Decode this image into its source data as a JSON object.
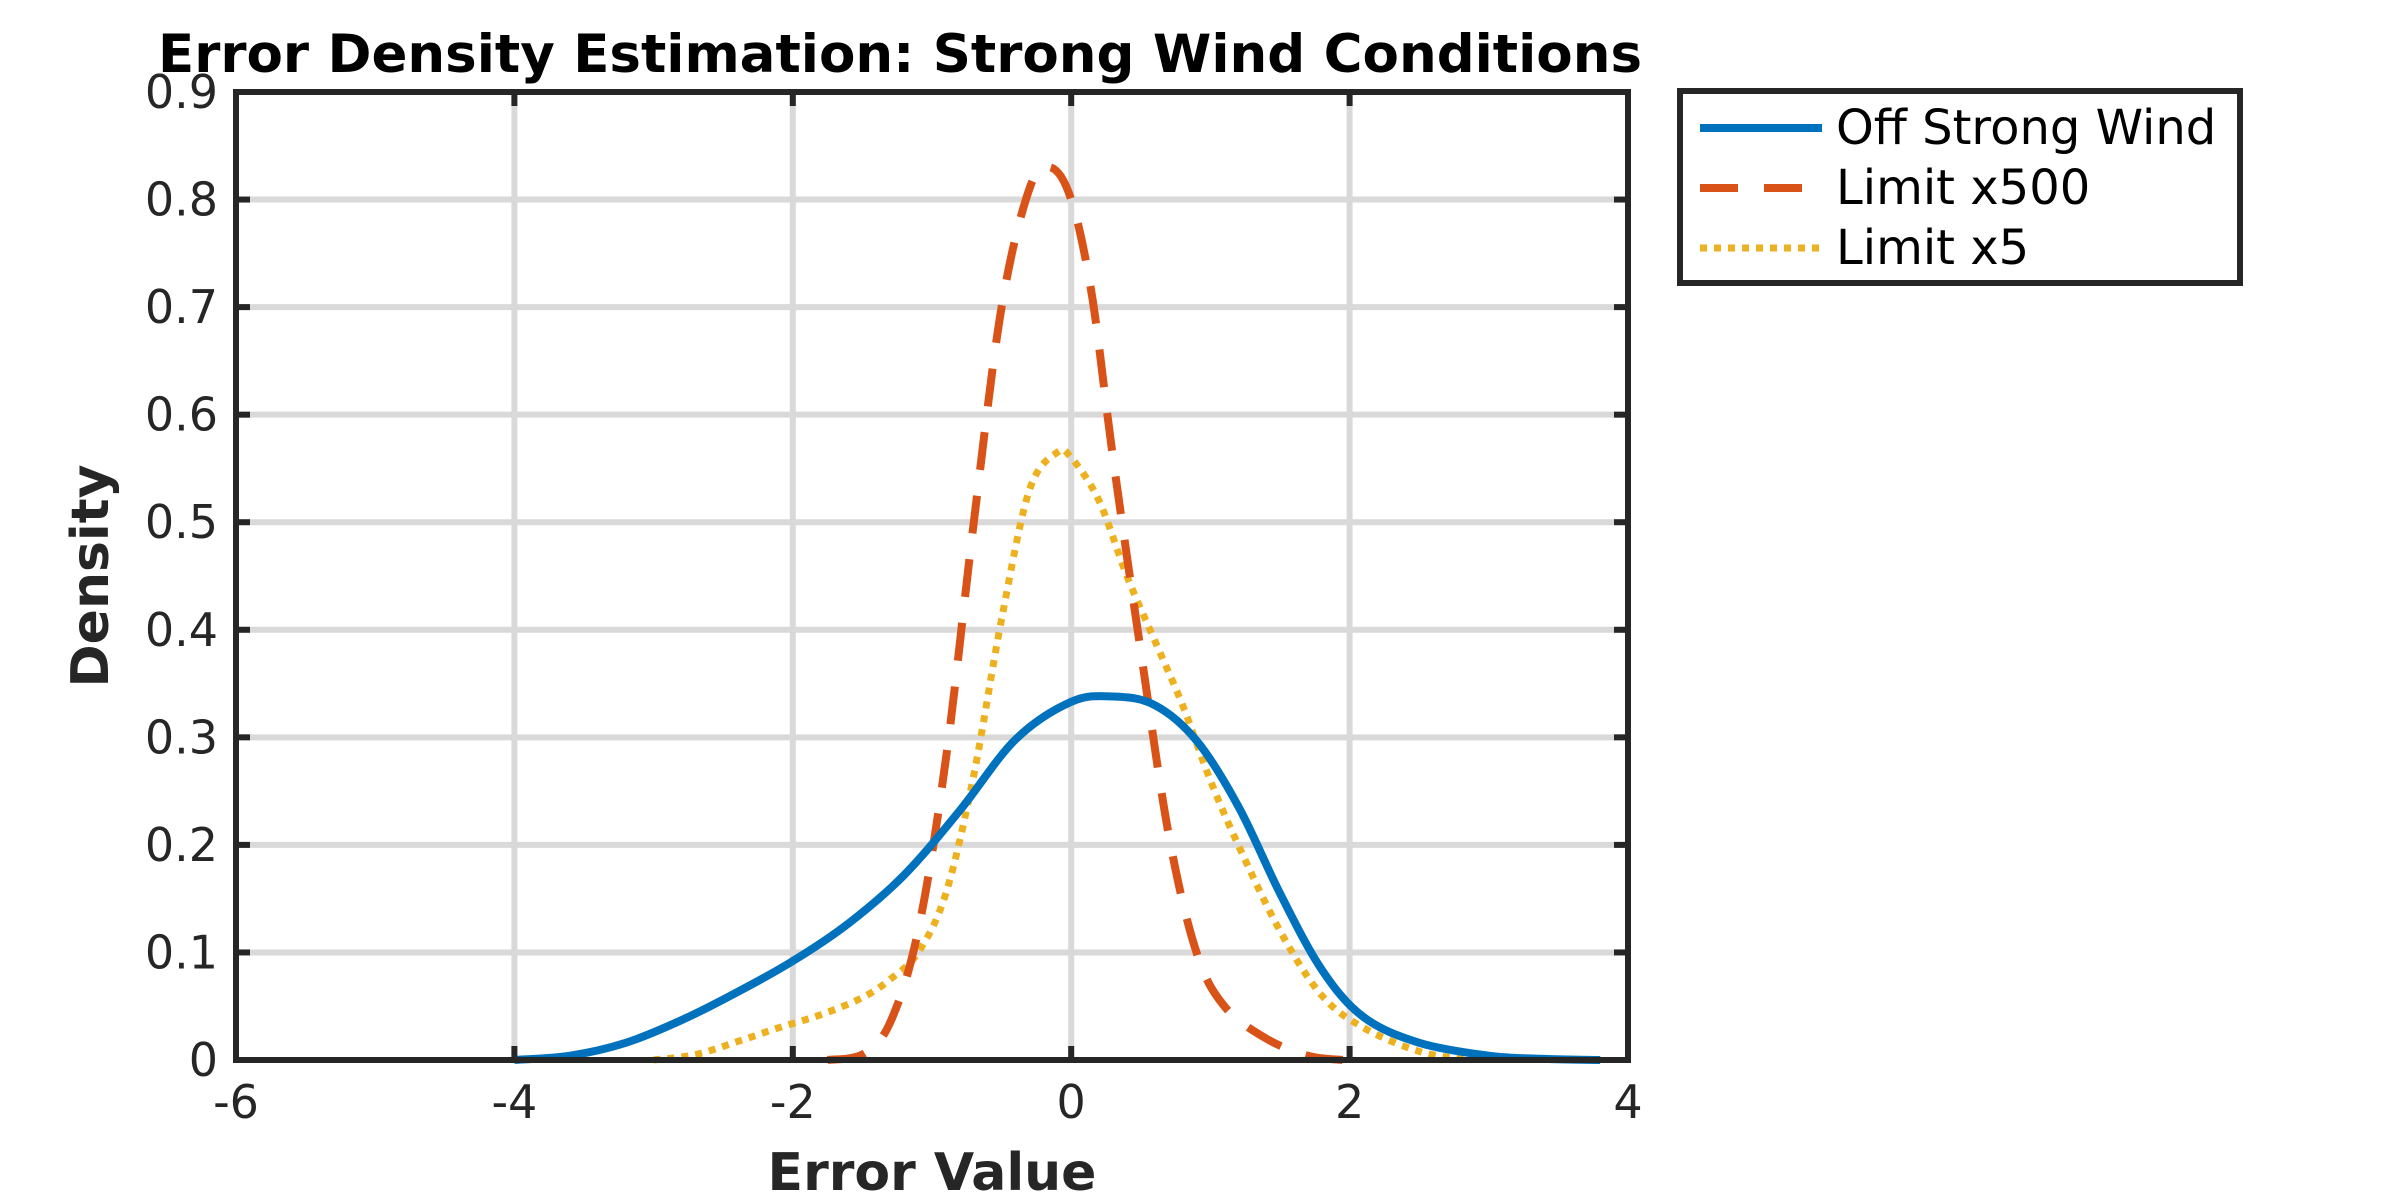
{
  "chart_data": {
    "type": "line",
    "title": "Error Density Estimation: Strong Wind Conditions",
    "xlabel": "Error Value",
    "ylabel": "Density",
    "xlim": [
      -6,
      4
    ],
    "ylim": [
      0,
      0.9
    ],
    "x_ticks": [
      -6,
      -4,
      -2,
      0,
      2,
      4
    ],
    "x_tick_labels": [
      "-6",
      "-4",
      "-2",
      "0",
      "2",
      "4"
    ],
    "y_ticks": [
      0,
      0.1,
      0.2,
      0.3,
      0.4,
      0.5,
      0.6,
      0.7,
      0.8,
      0.9
    ],
    "y_tick_labels": [
      "0",
      "0.1",
      "0.2",
      "0.3",
      "0.4",
      "0.5",
      "0.6",
      "0.7",
      "0.8",
      "0.9"
    ],
    "grid": true,
    "legend_position": "outside-top-right",
    "series": [
      {
        "name": "Off Strong Wind",
        "color": "#0072BD",
        "dash": "solid",
        "x": [
          -4.0,
          -3.6,
          -3.2,
          -2.8,
          -2.4,
          -2.0,
          -1.6,
          -1.2,
          -0.8,
          -0.4,
          0.0,
          0.3,
          0.6,
          0.9,
          1.2,
          1.5,
          1.8,
          2.1,
          2.5,
          3.0,
          3.4,
          3.8
        ],
        "y": [
          0.0,
          0.004,
          0.016,
          0.037,
          0.063,
          0.092,
          0.127,
          0.172,
          0.232,
          0.298,
          0.333,
          0.338,
          0.33,
          0.297,
          0.236,
          0.155,
          0.084,
          0.04,
          0.016,
          0.004,
          0.001,
          0.0
        ]
      },
      {
        "name": "Limit x500",
        "color": "#D95319",
        "dash": "dashed",
        "x": [
          -1.75,
          -1.5,
          -1.3,
          -1.1,
          -0.9,
          -0.7,
          -0.5,
          -0.3,
          -0.15,
          0.0,
          0.15,
          0.3,
          0.5,
          0.7,
          0.9,
          1.1,
          1.4,
          1.7,
          1.95
        ],
        "y": [
          0.0,
          0.005,
          0.035,
          0.12,
          0.28,
          0.5,
          0.7,
          0.81,
          0.83,
          0.8,
          0.71,
          0.56,
          0.38,
          0.21,
          0.1,
          0.05,
          0.02,
          0.004,
          0.0
        ]
      },
      {
        "name": "Limit x5",
        "color": "#EDB120",
        "dash": "dotted",
        "x": [
          -3.0,
          -2.7,
          -2.4,
          -2.1,
          -1.8,
          -1.5,
          -1.3,
          -1.1,
          -0.9,
          -0.7,
          -0.5,
          -0.3,
          -0.1,
          0.0,
          0.2,
          0.4,
          0.6,
          0.8,
          1.0,
          1.2,
          1.5,
          1.8,
          2.1,
          2.5,
          2.85
        ],
        "y": [
          0.0,
          0.005,
          0.017,
          0.03,
          0.042,
          0.058,
          0.075,
          0.1,
          0.155,
          0.265,
          0.41,
          0.53,
          0.565,
          0.56,
          0.52,
          0.45,
          0.39,
          0.33,
          0.26,
          0.2,
          0.12,
          0.06,
          0.03,
          0.008,
          0.0
        ]
      }
    ]
  }
}
